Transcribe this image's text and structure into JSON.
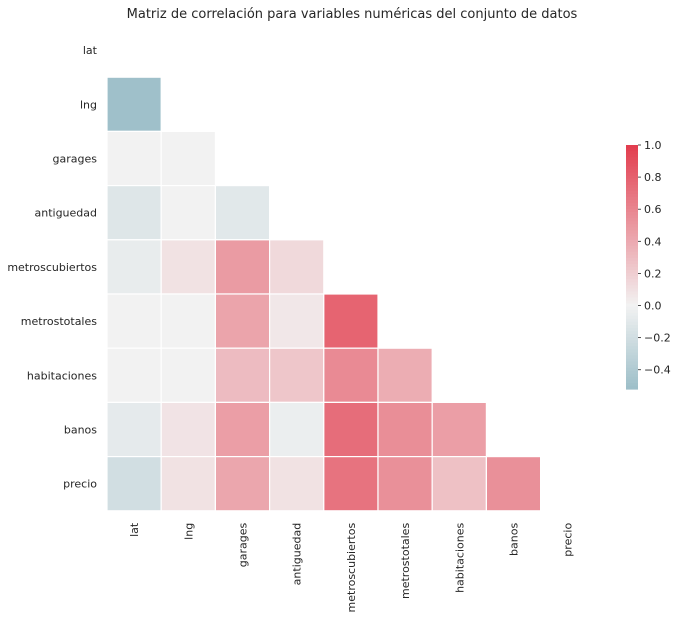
{
  "chart_data": {
    "type": "heatmap",
    "title": "Matriz de correlación para variables numéricas del conjunto de datos",
    "variables": [
      "lat",
      "lng",
      "garages",
      "antiguedad",
      "metroscubiertos",
      "metrostotales",
      "habitaciones",
      "banos",
      "precio"
    ],
    "mask": "upper-triangle-including-diagonal",
    "values": [
      [
        null,
        null,
        null,
        null,
        null,
        null,
        null,
        null,
        null
      ],
      [
        -0.5,
        null,
        null,
        null,
        null,
        null,
        null,
        null,
        null
      ],
      [
        0.0,
        0.0,
        null,
        null,
        null,
        null,
        null,
        null,
        null
      ],
      [
        -0.12,
        0.0,
        -0.1,
        null,
        null,
        null,
        null,
        null,
        null
      ],
      [
        -0.06,
        0.09,
        0.48,
        0.14,
        null,
        null,
        null,
        null,
        null
      ],
      [
        0.0,
        0.0,
        0.43,
        0.06,
        0.78,
        null,
        null,
        null,
        null
      ],
      [
        0.0,
        0.0,
        0.3,
        0.24,
        0.57,
        0.38,
        null,
        null,
        null
      ],
      [
        -0.08,
        0.08,
        0.46,
        -0.04,
        0.73,
        0.55,
        0.46,
        null,
        null
      ],
      [
        -0.2,
        0.09,
        0.42,
        0.09,
        0.7,
        0.54,
        0.27,
        0.54,
        null
      ]
    ],
    "colorbar": {
      "ticks": [
        "1.0",
        "0.8",
        "0.6",
        "0.4",
        "0.2",
        "0.0",
        "−0.2",
        "−0.4"
      ],
      "min": -0.52,
      "max": 1.0,
      "negative_color": "#9cbec8",
      "center_color": "#f2f2f2",
      "positive_color": "#e23c4d"
    }
  }
}
